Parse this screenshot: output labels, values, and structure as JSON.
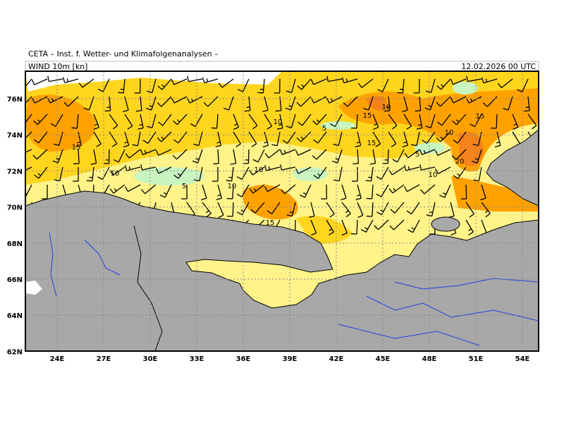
{
  "header": {
    "institute": "CETA – Inst. f. Wetter- und Klimafolgenanalysen –",
    "field": "WIND 10m [kn]",
    "datetime": "12.02.2026 00 UTC"
  },
  "map": {
    "lat_labels": [
      "76N",
      "74N",
      "72N",
      "70N",
      "68N",
      "66N",
      "64N",
      "62N"
    ],
    "lon_labels": [
      "24E",
      "27E",
      "30E",
      "33E",
      "36E",
      "39E",
      "42E",
      "45E",
      "48E",
      "51E",
      "54E"
    ],
    "contour_labels": [
      10,
      15,
      15,
      10,
      5,
      10,
      15,
      15,
      5,
      20,
      10,
      10,
      10,
      5,
      10,
      15
    ]
  }
}
